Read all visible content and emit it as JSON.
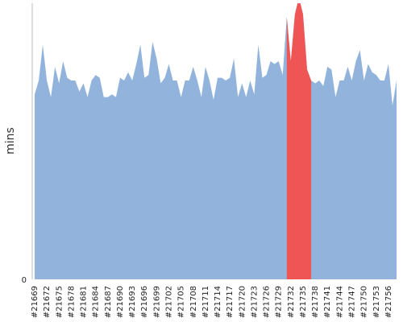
{
  "chart_data": {
    "type": "area",
    "title": "",
    "ylabel": "mins",
    "xlabel": "",
    "ylim": [
      0,
      100
    ],
    "y_ticks": [
      "0"
    ],
    "grid": false,
    "colors": {
      "area": "#92b4dc",
      "highlight": "#ef5555",
      "axis": "#bbbbbb"
    },
    "highlight": {
      "from": "#21731",
      "to": "#21737"
    },
    "x_tick_labels": [
      "#21669",
      "#21672",
      "#21675",
      "#21678",
      "#21681",
      "#21684",
      "#21687",
      "#21690",
      "#21693",
      "#21696",
      "#21699",
      "#21702",
      "#21705",
      "#21708",
      "#21711",
      "#21714",
      "#21717",
      "#21720",
      "#21723",
      "#21726",
      "#21729",
      "#21732",
      "#21735",
      "#21738",
      "#21741",
      "#21744",
      "#21747",
      "#21750",
      "#21753",
      "#21756"
    ],
    "x": [
      "#21669",
      "#21670",
      "#21671",
      "#21672",
      "#21673",
      "#21674",
      "#21675",
      "#21676",
      "#21677",
      "#21678",
      "#21679",
      "#21680",
      "#21681",
      "#21682",
      "#21683",
      "#21684",
      "#21685",
      "#21686",
      "#21687",
      "#21688",
      "#21689",
      "#21690",
      "#21691",
      "#21692",
      "#21693",
      "#21694",
      "#21695",
      "#21696",
      "#21697",
      "#21698",
      "#21699",
      "#21700",
      "#21701",
      "#21702",
      "#21703",
      "#21704",
      "#21705",
      "#21706",
      "#21707",
      "#21708",
      "#21709",
      "#21710",
      "#21711",
      "#21712",
      "#21713",
      "#21714",
      "#21715",
      "#21716",
      "#21717",
      "#21718",
      "#21719",
      "#21720",
      "#21721",
      "#21722",
      "#21723",
      "#21724",
      "#21725",
      "#21726",
      "#21727",
      "#21728",
      "#21729",
      "#21730",
      "#21731",
      "#21732",
      "#21733",
      "#21734",
      "#21735",
      "#21736",
      "#21737",
      "#21738",
      "#21739",
      "#21740",
      "#21741",
      "#21742",
      "#21743",
      "#21744",
      "#21745",
      "#21746",
      "#21747",
      "#21748",
      "#21749",
      "#21750",
      "#21751",
      "#21752",
      "#21753",
      "#21754",
      "#21755",
      "#21756",
      "#21757",
      "#21758"
    ],
    "values": [
      67,
      72,
      85,
      72,
      66,
      77,
      71,
      79,
      73,
      72,
      72,
      68,
      71,
      66,
      72,
      74,
      73,
      66,
      66,
      67,
      66,
      73,
      72,
      75,
      72,
      78,
      85,
      73,
      74,
      86,
      80,
      71,
      73,
      78,
      72,
      72,
      66,
      72,
      72,
      77,
      72,
      66,
      77,
      72,
      65,
      73,
      73,
      72,
      73,
      80,
      66,
      71,
      66,
      72,
      67,
      85,
      73,
      74,
      79,
      78,
      79,
      74,
      95,
      79,
      96,
      102,
      96,
      76,
      72,
      71,
      72,
      70,
      77,
      76,
      66,
      72,
      72,
      77,
      72,
      79,
      83,
      72,
      78,
      75,
      74,
      72,
      72,
      78,
      63,
      72
    ]
  }
}
